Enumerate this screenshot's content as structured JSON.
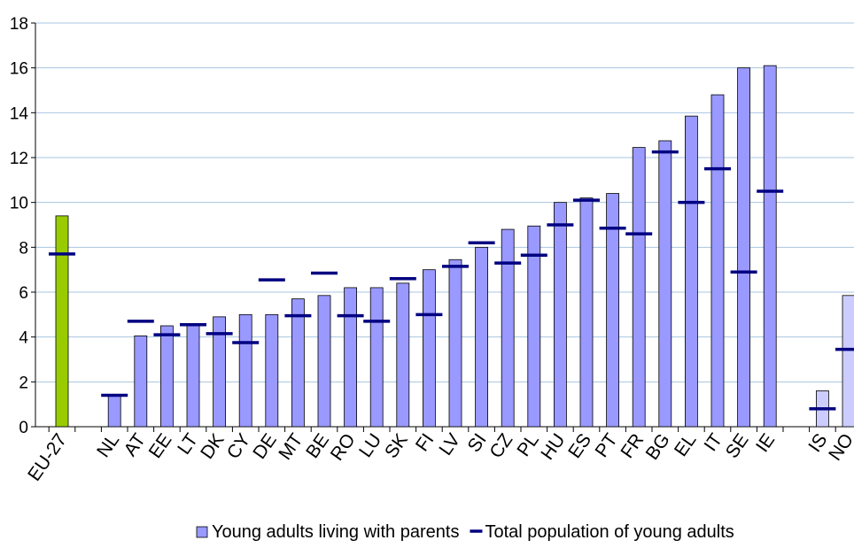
{
  "chart_data": {
    "type": "bar",
    "categories": [
      "EU-27",
      null,
      "NL",
      "AT",
      "EE",
      "LT",
      "DK",
      "CY",
      "DE",
      "MT",
      "BE",
      "RO",
      "LU",
      "SK",
      "FI",
      "LV",
      "SI",
      "CZ",
      "PL",
      "HU",
      "ES",
      "PT",
      "FR",
      "BG",
      "EL",
      "IT",
      "SE",
      "IE",
      null,
      "IS",
      "NO"
    ],
    "series": [
      {
        "name": "Young adults living with parents",
        "type": "bar",
        "color": "#9999ff",
        "colors": [
          "#99cc00",
          null,
          "#9999ff",
          "#9999ff",
          "#9999ff",
          "#9999ff",
          "#9999ff",
          "#9999ff",
          "#9999ff",
          "#9999ff",
          "#9999ff",
          "#9999ff",
          "#9999ff",
          "#9999ff",
          "#9999ff",
          "#9999ff",
          "#9999ff",
          "#9999ff",
          "#9999ff",
          "#9999ff",
          "#9999ff",
          "#9999ff",
          "#9999ff",
          "#9999ff",
          "#9999ff",
          "#9999ff",
          "#9999ff",
          "#9999ff",
          null,
          "#ccccff",
          "#ccccff"
        ],
        "values": [
          9.4,
          null,
          1.4,
          4.05,
          4.5,
          4.6,
          4.9,
          5.0,
          5.0,
          5.7,
          5.85,
          6.2,
          6.2,
          6.4,
          7.0,
          7.45,
          8.0,
          8.8,
          8.95,
          10.0,
          10.2,
          10.4,
          12.45,
          12.75,
          13.85,
          14.8,
          16.0,
          16.1,
          null,
          1.6,
          5.85
        ]
      },
      {
        "name": "Total population of young adults",
        "type": "marker",
        "color": "#000080",
        "values": [
          7.7,
          null,
          1.4,
          4.7,
          4.1,
          4.55,
          4.15,
          3.75,
          6.55,
          4.95,
          6.85,
          4.95,
          4.7,
          6.6,
          5.0,
          7.15,
          8.2,
          7.3,
          7.65,
          9.0,
          10.1,
          8.85,
          8.6,
          12.25,
          10.0,
          11.5,
          6.9,
          10.5,
          null,
          0.8,
          3.45
        ]
      }
    ],
    "ylim": [
      0,
      18
    ],
    "yticks": [
      0,
      2,
      4,
      6,
      8,
      10,
      12,
      14,
      16,
      18
    ],
    "grid": true
  }
}
